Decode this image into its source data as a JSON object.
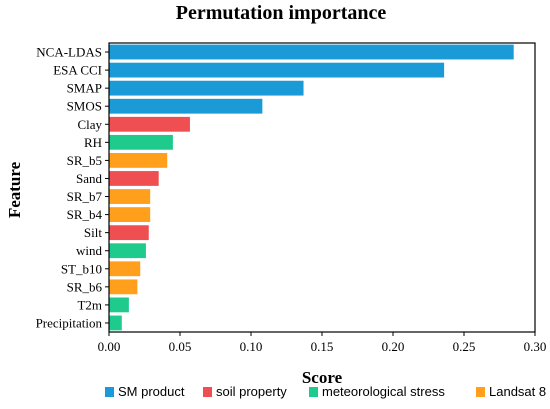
{
  "chart_data": {
    "type": "bar",
    "orientation": "horizontal",
    "title": "Permutation  importance",
    "xlabel": "Score",
    "ylabel": "Feature",
    "xlim": [
      0,
      0.3
    ],
    "xticks": [
      "0.00",
      "0.05",
      "0.10",
      "0.15",
      "0.20",
      "0.25",
      "0.30"
    ],
    "categories": [
      "NCA-LDAS",
      "ESA CCI",
      "SMAP",
      "SMOS",
      "Clay",
      "RH",
      "SR_b5",
      "Sand",
      "SR_b7",
      "SR_b4",
      "Silt",
      "wind",
      "ST_b10",
      "SR_b6",
      "T2m",
      "Precipitation"
    ],
    "values": [
      0.285,
      0.236,
      0.137,
      0.108,
      0.057,
      0.045,
      0.041,
      0.035,
      0.029,
      0.029,
      0.028,
      0.026,
      0.022,
      0.02,
      0.014,
      0.009
    ],
    "groups": [
      "SM product",
      "SM product",
      "SM product",
      "SM product",
      "soil property",
      "meteorological stress",
      "Landsat 8",
      "soil property",
      "Landsat 8",
      "Landsat 8",
      "soil property",
      "meteorological stress",
      "Landsat 8",
      "Landsat 8",
      "meteorological stress",
      "meteorological stress"
    ],
    "legend": [
      {
        "name": "SM product",
        "color": "#1a9bd7"
      },
      {
        "name": "soil property",
        "color": "#f04f52"
      },
      {
        "name": "meteorological stress",
        "color": "#1ecb8d"
      },
      {
        "name": "Landsat 8",
        "color": "#ff9f1c"
      }
    ],
    "legend_position": "bottom",
    "grid": false
  }
}
